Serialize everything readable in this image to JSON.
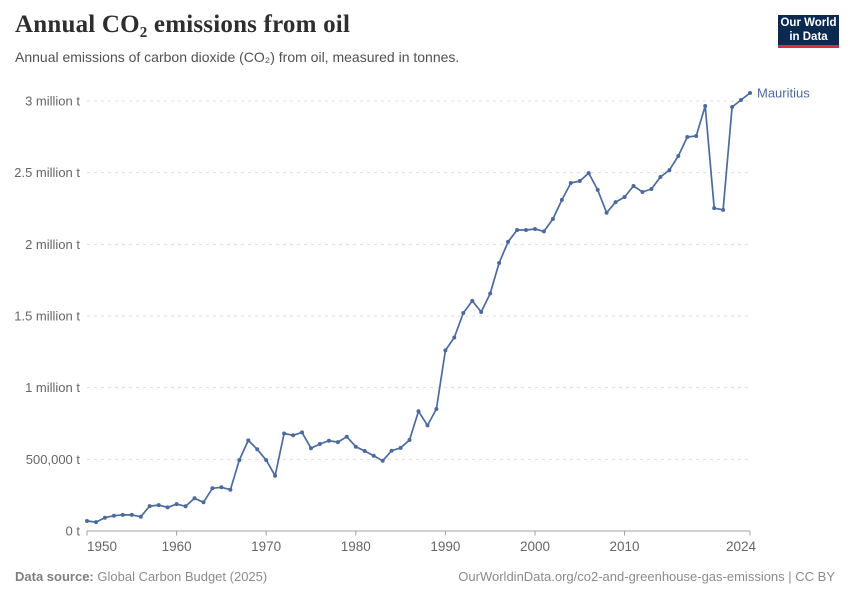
{
  "header": {
    "title": "Annual CO₂ emissions from oil",
    "subtitle": "Annual emissions of carbon dioxide (CO₂) from oil, measured in tonnes."
  },
  "logo": {
    "line1": "Our World",
    "line2": "in Data",
    "bg": "#0b2a52",
    "accent": "#d0342c"
  },
  "footer": {
    "source_label": "Data source:",
    "source": "Global Carbon Budget (2025)",
    "right": "OurWorldinData.org/co2-and-greenhouse-gas-emissions | CC BY"
  },
  "chart_data": {
    "type": "line",
    "title": "Annual CO₂ emissions from oil",
    "entity": "Mauritius",
    "unit": "t",
    "x": {
      "start": 1950,
      "end": 2024,
      "step": 1
    },
    "xlim": [
      1950,
      2024
    ],
    "ylim": [
      0,
      3000000
    ],
    "grid": true,
    "legend_position": "end-of-line-label",
    "line_color": "#4C6A9E",
    "grid_color": "#dddddd",
    "axis_color": "#a1a1a1",
    "label_color": "#666666",
    "x_ticks": [
      1950,
      1960,
      1970,
      1980,
      1990,
      2000,
      2010,
      2024
    ],
    "y_ticks": [
      {
        "v": 0,
        "label": "0 t"
      },
      {
        "v": 500000,
        "label": "500,000 t"
      },
      {
        "v": 1000000,
        "label": "1 million t"
      },
      {
        "v": 1500000,
        "label": "1.5 million t"
      },
      {
        "v": 2000000,
        "label": "2 million t"
      },
      {
        "v": 2500000,
        "label": "2.5 million t"
      },
      {
        "v": 3000000,
        "label": "3 million t"
      }
    ],
    "values": [
      70000,
      62000,
      93000,
      107000,
      112000,
      112000,
      100000,
      174000,
      181000,
      165000,
      188000,
      172000,
      228000,
      200000,
      298000,
      305000,
      288000,
      495000,
      632000,
      570000,
      495000,
      385000,
      680000,
      668000,
      688000,
      578000,
      607000,
      630000,
      620000,
      658000,
      588000,
      558000,
      525000,
      490000,
      560000,
      580000,
      635000,
      835000,
      737000,
      851000,
      1260000,
      1350000,
      1521000,
      1605000,
      1528000,
      1657000,
      1870000,
      2018000,
      2100000,
      2100000,
      2107000,
      2090000,
      2177000,
      2310000,
      2428000,
      2442000,
      2497000,
      2380000,
      2220000,
      2295000,
      2330000,
      2407000,
      2365000,
      2386000,
      2470000,
      2518000,
      2616000,
      2749000,
      2756000,
      2965000,
      2253000,
      2240000,
      2958000,
      3007000,
      3056000
    ]
  }
}
